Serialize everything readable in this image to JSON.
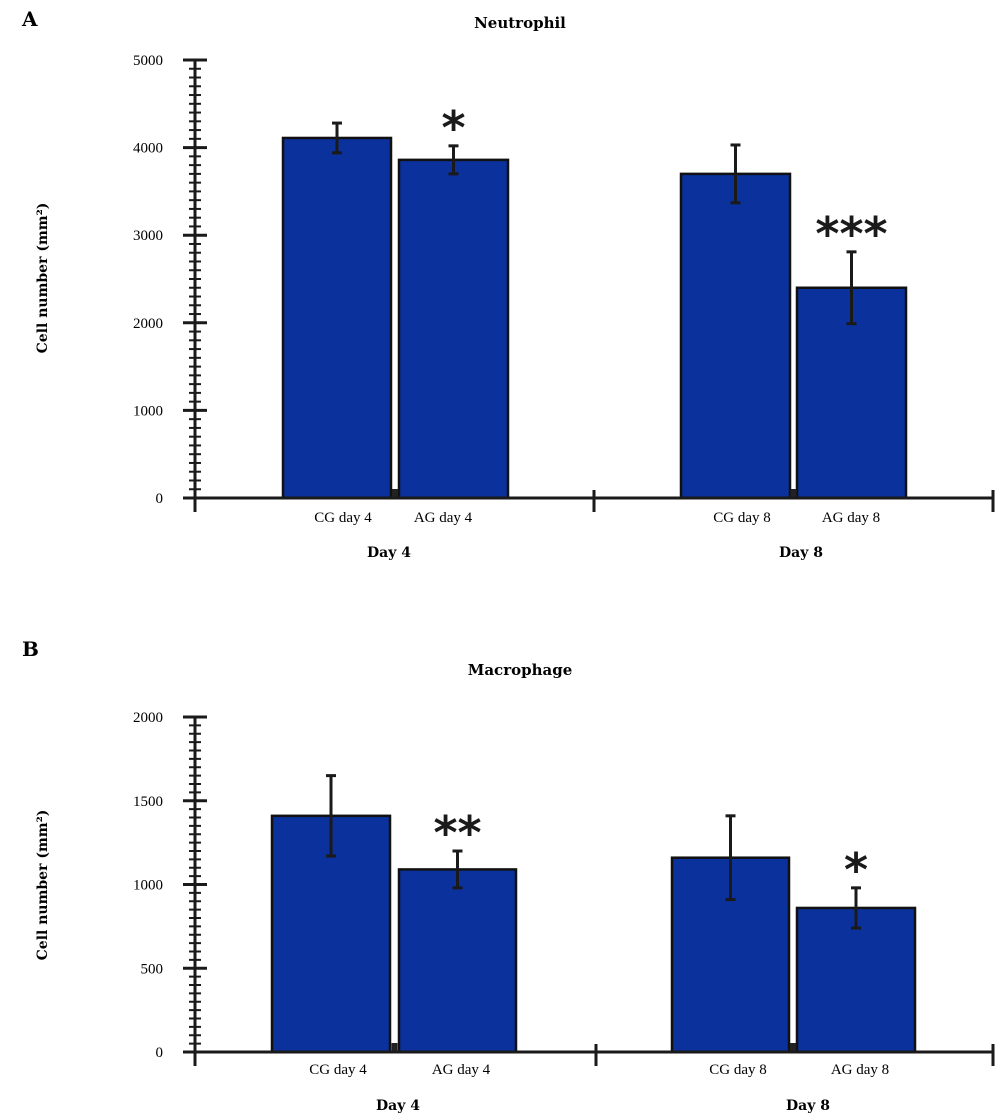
{
  "colors": {
    "bar": "#0a319c",
    "bar_stroke": "#111111",
    "axis": "#1a1a1a"
  },
  "chart_data": [
    {
      "type": "bar",
      "panel": "A",
      "title": "Neutrophil",
      "ylabel": "Cell number (mm²)",
      "ylim": [
        0,
        5000
      ],
      "yticks": [
        0,
        1000,
        2000,
        3000,
        4000,
        5000
      ],
      "categories": [
        "CG day 4",
        "AG day 4",
        "CG day 8",
        "AG day 8"
      ],
      "values": [
        4110,
        3860,
        3700,
        2400
      ],
      "errors": [
        170,
        160,
        330,
        410
      ],
      "annotations": [
        "",
        "*",
        "",
        "***"
      ],
      "groups": [
        "Day 4",
        "Day 8"
      ]
    },
    {
      "type": "bar",
      "panel": "B",
      "title": "Macrophage",
      "ylabel": "Cell number (mm²)",
      "ylim": [
        0,
        2000
      ],
      "yticks": [
        0,
        500,
        1000,
        1500,
        2000
      ],
      "categories": [
        "CG day 4",
        "AG day 4",
        "CG day 8",
        "AG day 8"
      ],
      "values": [
        1410,
        1090,
        1160,
        860
      ],
      "errors": [
        240,
        110,
        250,
        120
      ],
      "annotations": [
        "",
        "**",
        "",
        "*"
      ],
      "groups": [
        "Day 4",
        "Day 8"
      ]
    }
  ]
}
